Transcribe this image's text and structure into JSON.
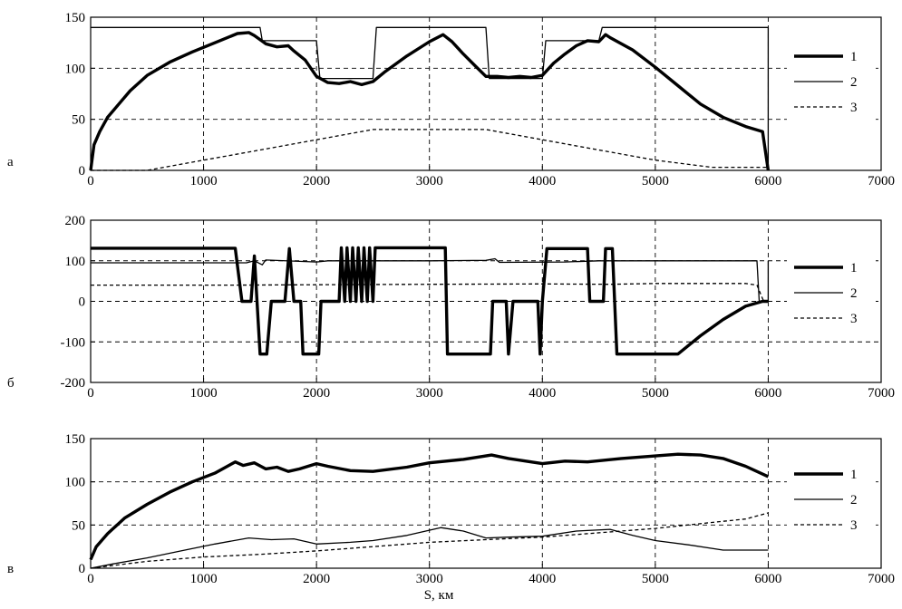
{
  "chart_data": [
    {
      "type": "line",
      "panel_label": "а",
      "xlabel": "",
      "ylabel": "",
      "xlim": [
        0,
        7000
      ],
      "ylim": [
        0,
        150
      ],
      "xticks": [
        0,
        1000,
        2000,
        3000,
        4000,
        5000,
        6000,
        7000
      ],
      "yticks": [
        0,
        50,
        100,
        150
      ],
      "grid": true,
      "legend_position": "right",
      "series": [
        {
          "name": "1",
          "style": "thick",
          "points": [
            [
              0,
              0
            ],
            [
              30,
              25
            ],
            [
              80,
              38
            ],
            [
              150,
              52
            ],
            [
              250,
              65
            ],
            [
              350,
              78
            ],
            [
              500,
              93
            ],
            [
              700,
              106
            ],
            [
              900,
              116
            ],
            [
              1100,
              125
            ],
            [
              1300,
              134
            ],
            [
              1400,
              135
            ],
            [
              1450,
              132
            ],
            [
              1500,
              128
            ],
            [
              1550,
              124
            ],
            [
              1650,
              121
            ],
            [
              1750,
              122
            ],
            [
              1800,
              117
            ],
            [
              1900,
              108
            ],
            [
              2000,
              92
            ],
            [
              2100,
              86
            ],
            [
              2200,
              85
            ],
            [
              2300,
              87
            ],
            [
              2400,
              84
            ],
            [
              2500,
              87
            ],
            [
              2600,
              96
            ],
            [
              2800,
              112
            ],
            [
              3000,
              126
            ],
            [
              3120,
              133
            ],
            [
              3200,
              126
            ],
            [
              3300,
              114
            ],
            [
              3400,
              103
            ],
            [
              3500,
              92
            ],
            [
              3600,
              92
            ],
            [
              3700,
              91
            ],
            [
              3800,
              92
            ],
            [
              3900,
              91
            ],
            [
              4000,
              93
            ],
            [
              4100,
              105
            ],
            [
              4200,
              114
            ],
            [
              4300,
              122
            ],
            [
              4400,
              127
            ],
            [
              4500,
              126
            ],
            [
              4560,
              133
            ],
            [
              4600,
              130
            ],
            [
              4800,
              118
            ],
            [
              5000,
              101
            ],
            [
              5200,
              83
            ],
            [
              5400,
              65
            ],
            [
              5600,
              52
            ],
            [
              5800,
              43
            ],
            [
              5950,
              38
            ],
            [
              6000,
              0
            ]
          ]
        },
        {
          "name": "2",
          "style": "thin",
          "points": [
            [
              0,
              140
            ],
            [
              1500,
              140
            ],
            [
              1520,
              127
            ],
            [
              2000,
              127
            ],
            [
              2030,
              90
            ],
            [
              2500,
              90
            ],
            [
              2530,
              140
            ],
            [
              3500,
              140
            ],
            [
              3530,
              90
            ],
            [
              4000,
              90
            ],
            [
              4030,
              127
            ],
            [
              4500,
              127
            ],
            [
              4530,
              140
            ],
            [
              6000,
              140
            ],
            [
              6000,
              0
            ]
          ]
        },
        {
          "name": "3",
          "style": "dashed",
          "points": [
            [
              0,
              0
            ],
            [
              500,
              0
            ],
            [
              1000,
              10
            ],
            [
              1500,
              20
            ],
            [
              2000,
              30
            ],
            [
              2500,
              40
            ],
            [
              3500,
              40
            ],
            [
              4000,
              30
            ],
            [
              4500,
              20
            ],
            [
              5000,
              10
            ],
            [
              5500,
              3
            ],
            [
              6000,
              3
            ]
          ]
        }
      ]
    },
    {
      "type": "line",
      "panel_label": "б",
      "xlabel": "",
      "ylabel": "",
      "xlim": [
        0,
        7000
      ],
      "ylim": [
        -200,
        200
      ],
      "xticks": [
        0,
        1000,
        2000,
        3000,
        4000,
        5000,
        6000,
        7000
      ],
      "yticks": [
        -200,
        -100,
        0,
        100,
        200
      ],
      "grid": true,
      "legend_position": "right",
      "series": [
        {
          "name": "1",
          "style": "thick",
          "points": [
            [
              0,
              131
            ],
            [
              1280,
              131
            ],
            [
              1340,
              0
            ],
            [
              1420,
              0
            ],
            [
              1450,
              112
            ],
            [
              1500,
              -130
            ],
            [
              1560,
              -130
            ],
            [
              1600,
              0
            ],
            [
              1720,
              0
            ],
            [
              1760,
              130
            ],
            [
              1800,
              0
            ],
            [
              1860,
              0
            ],
            [
              1880,
              -130
            ],
            [
              2020,
              -130
            ],
            [
              2040,
              0
            ],
            [
              2200,
              0
            ],
            [
              2220,
              132
            ],
            [
              2250,
              0
            ],
            [
              2270,
              132
            ],
            [
              2300,
              0
            ],
            [
              2320,
              132
            ],
            [
              2350,
              0
            ],
            [
              2370,
              132
            ],
            [
              2400,
              0
            ],
            [
              2420,
              132
            ],
            [
              2450,
              0
            ],
            [
              2470,
              132
            ],
            [
              2500,
              0
            ],
            [
              2520,
              132
            ],
            [
              3140,
              132
            ],
            [
              3160,
              -130
            ],
            [
              3540,
              -130
            ],
            [
              3560,
              0
            ],
            [
              3680,
              0
            ],
            [
              3700,
              -130
            ],
            [
              3740,
              0
            ],
            [
              3960,
              0
            ],
            [
              3980,
              -130
            ],
            [
              4000,
              0
            ],
            [
              4040,
              130
            ],
            [
              4400,
              130
            ],
            [
              4420,
              0
            ],
            [
              4540,
              0
            ],
            [
              4560,
              130
            ],
            [
              4620,
              130
            ],
            [
              4660,
              -130
            ],
            [
              5200,
              -130
            ],
            [
              5400,
              -85
            ],
            [
              5600,
              -45
            ],
            [
              5800,
              -12
            ],
            [
              5950,
              0
            ],
            [
              6000,
              0
            ]
          ]
        },
        {
          "name": "2",
          "style": "thin",
          "points": [
            [
              0,
              95
            ],
            [
              1380,
              95
            ],
            [
              1450,
              100
            ],
            [
              1520,
              90
            ],
            [
              1550,
              102
            ],
            [
              2000,
              97
            ],
            [
              2100,
              100
            ],
            [
              3000,
              100
            ],
            [
              3500,
              101
            ],
            [
              3580,
              105
            ],
            [
              3620,
              96
            ],
            [
              4200,
              97
            ],
            [
              4500,
              100
            ],
            [
              5800,
              100
            ],
            [
              5900,
              100
            ],
            [
              5920,
              0
            ],
            [
              6000,
              0
            ],
            [
              6000,
              100
            ]
          ]
        },
        {
          "name": "3",
          "style": "dashed",
          "points": [
            [
              0,
              40
            ],
            [
              1000,
              40
            ],
            [
              1300,
              40
            ],
            [
              2000,
              41
            ],
            [
              3000,
              42
            ],
            [
              4000,
              43
            ],
            [
              4600,
              42
            ],
            [
              5000,
              44
            ],
            [
              5800,
              44
            ],
            [
              5900,
              40
            ],
            [
              5960,
              0
            ],
            [
              6000,
              0
            ]
          ]
        }
      ]
    },
    {
      "type": "line",
      "panel_label": "в",
      "xlabel": "S, км",
      "ylabel": "",
      "xlim": [
        0,
        7000
      ],
      "ylim": [
        0,
        150
      ],
      "xticks": [
        0,
        1000,
        2000,
        3000,
        4000,
        5000,
        6000,
        7000
      ],
      "yticks": [
        0,
        50,
        100,
        150
      ],
      "grid": true,
      "legend_position": "right",
      "series": [
        {
          "name": "1",
          "style": "thick",
          "points": [
            [
              0,
              10
            ],
            [
              50,
              25
            ],
            [
              150,
              40
            ],
            [
              300,
              58
            ],
            [
              500,
              74
            ],
            [
              700,
              88
            ],
            [
              900,
              100
            ],
            [
              1100,
              110
            ],
            [
              1280,
              123
            ],
            [
              1350,
              119
            ],
            [
              1450,
              122
            ],
            [
              1550,
              115
            ],
            [
              1650,
              117
            ],
            [
              1750,
              112
            ],
            [
              1850,
              115
            ],
            [
              2000,
              121
            ],
            [
              2100,
              118
            ],
            [
              2300,
              113
            ],
            [
              2500,
              112
            ],
            [
              2800,
              117
            ],
            [
              3000,
              122
            ],
            [
              3300,
              126
            ],
            [
              3550,
              131
            ],
            [
              3700,
              127
            ],
            [
              3900,
              123
            ],
            [
              4000,
              121
            ],
            [
              4200,
              124
            ],
            [
              4400,
              123
            ],
            [
              4700,
              127
            ],
            [
              5000,
              130
            ],
            [
              5200,
              132
            ],
            [
              5400,
              131
            ],
            [
              5600,
              127
            ],
            [
              5800,
              118
            ],
            [
              6000,
              106
            ]
          ]
        },
        {
          "name": "2",
          "style": "thin",
          "points": [
            [
              0,
              0
            ],
            [
              200,
              5
            ],
            [
              500,
              12
            ],
            [
              800,
              20
            ],
            [
              1100,
              28
            ],
            [
              1400,
              35
            ],
            [
              1600,
              33
            ],
            [
              1800,
              34
            ],
            [
              2000,
              28
            ],
            [
              2300,
              30
            ],
            [
              2500,
              32
            ],
            [
              2800,
              38
            ],
            [
              3100,
              47
            ],
            [
              3300,
              43
            ],
            [
              3500,
              35
            ],
            [
              3700,
              36
            ],
            [
              4000,
              37
            ],
            [
              4300,
              43
            ],
            [
              4600,
              45
            ],
            [
              4800,
              38
            ],
            [
              5000,
              32
            ],
            [
              5300,
              27
            ],
            [
              5600,
              21
            ],
            [
              6000,
              21
            ]
          ]
        },
        {
          "name": "3",
          "style": "dashed",
          "points": [
            [
              0,
              0
            ],
            [
              500,
              8
            ],
            [
              1000,
              13
            ],
            [
              1500,
              16
            ],
            [
              2000,
              20
            ],
            [
              2500,
              25
            ],
            [
              3000,
              30
            ],
            [
              3500,
              33
            ],
            [
              4000,
              36
            ],
            [
              4500,
              41
            ],
            [
              5000,
              46
            ],
            [
              5500,
              53
            ],
            [
              5800,
              57
            ],
            [
              6000,
              64
            ]
          ]
        }
      ]
    }
  ]
}
